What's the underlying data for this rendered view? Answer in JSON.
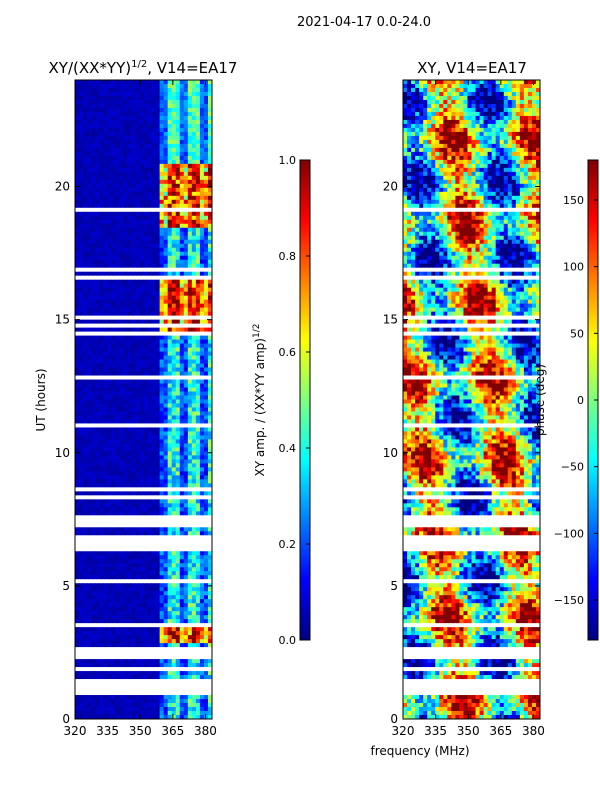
{
  "suptitle": "2021-04-17 0.0-24.0",
  "colors": {
    "jet": [
      "#00007f",
      "#0000ff",
      "#007fff",
      "#00ffff",
      "#7fff7f",
      "#ffff00",
      "#ff7f00",
      "#ff0000",
      "#7f0000"
    ],
    "gap": "#ffffff"
  },
  "chart_data": [
    {
      "type": "heatmap",
      "name": "amplitude",
      "title_base": "XY/(XX*YY)",
      "title_exp": "1/2",
      "title_suffix": ", V14=EA17",
      "xlabel": "",
      "ylabel": "UT (hours)",
      "xlim": [
        320,
        383
      ],
      "ylim": [
        0,
        24
      ],
      "xticks": [
        "320",
        "335",
        "350",
        "365",
        "380"
      ],
      "yticks": [
        "0",
        "5",
        "10",
        "15",
        "20"
      ],
      "colorbar": {
        "label_base": "XY amp. / (XX*YY amp)",
        "label_exp": "1/2",
        "range": [
          0.0,
          1.0
        ],
        "ticks": [
          "0.0",
          "0.2",
          "0.4",
          "0.6",
          "0.8",
          "1.0"
        ]
      }
    },
    {
      "type": "heatmap",
      "name": "phase",
      "title_base": "XY, V14=EA17",
      "xlabel": "frequency (MHz)",
      "ylabel": "",
      "xlim": [
        320,
        383
      ],
      "ylim": [
        0,
        24
      ],
      "xticks": [
        "320",
        "335",
        "350",
        "365",
        "380"
      ],
      "yticks": [
        "0",
        "5",
        "10",
        "15",
        "20"
      ],
      "colorbar": {
        "label": "phase (deg)",
        "range": [
          -180,
          180
        ],
        "ticks": [
          "-150",
          "-100",
          "-50",
          "0",
          "50",
          "100",
          "150"
        ]
      }
    }
  ]
}
